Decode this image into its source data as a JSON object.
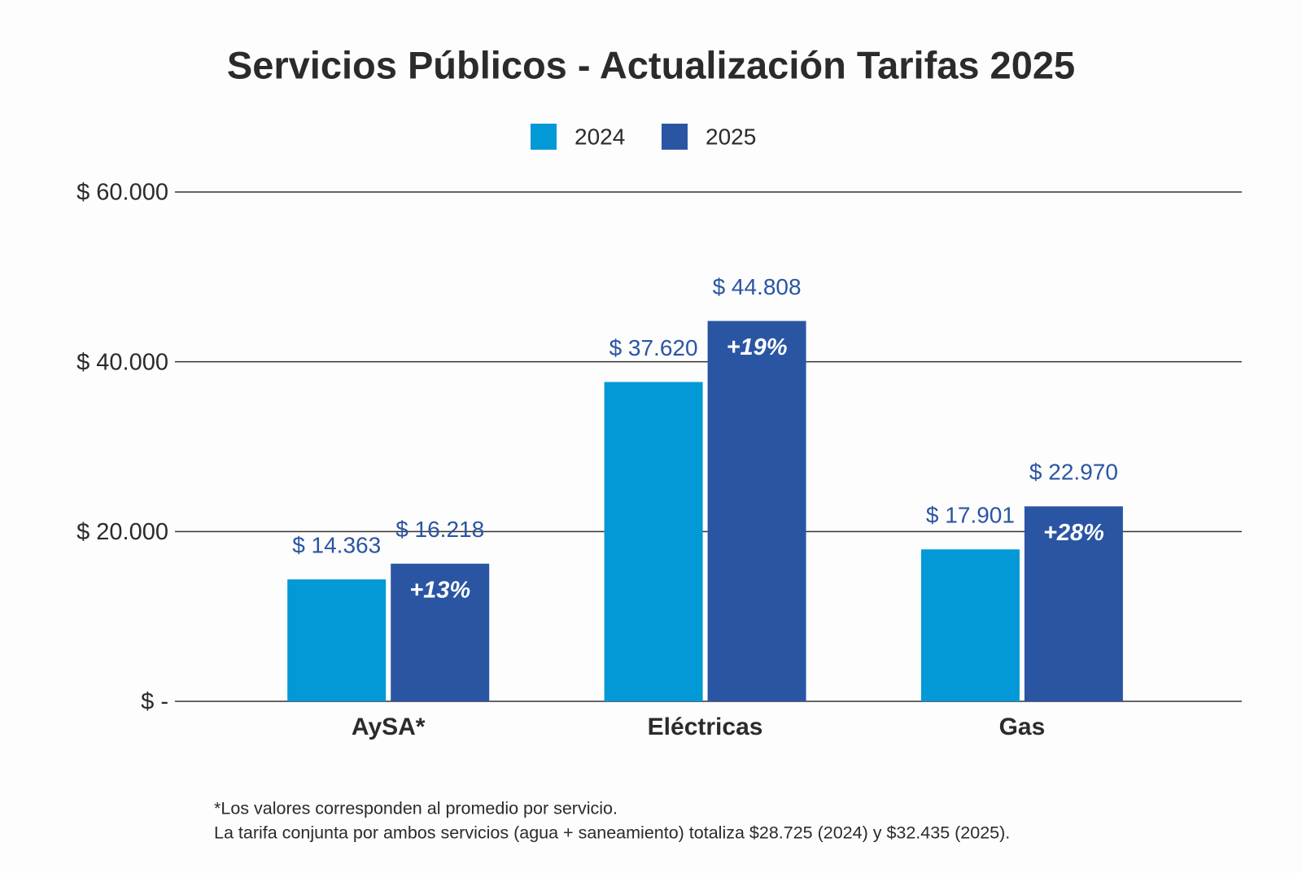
{
  "chart_data": {
    "type": "bar",
    "title": "Servicios Públicos - Actualización Tarifas 2025",
    "categories": [
      "AySA*",
      "Eléctricas",
      "Gas"
    ],
    "series": [
      {
        "name": "2024",
        "color": "#0399d6",
        "values": [
          14363,
          37620,
          17901
        ],
        "value_labels": [
          "$ 14.363",
          "$ 37.620",
          "$ 17.901"
        ]
      },
      {
        "name": "2025",
        "color": "#2a55a3",
        "values": [
          16218,
          44808,
          22970
        ],
        "value_labels": [
          "$ 16.218",
          "$ 44.808",
          "$ 22.970"
        ]
      }
    ],
    "annotations": [
      "+13%",
      "+19%",
      "+28%"
    ],
    "ylim": [
      0,
      60000
    ],
    "yticks": [
      {
        "value": 0,
        "label": "$ -"
      },
      {
        "value": 20000,
        "label": "$ 20.000"
      },
      {
        "value": 40000,
        "label": "$ 40.000"
      },
      {
        "value": 60000,
        "label": "$ 60.000"
      }
    ],
    "grid": true,
    "legend": "top",
    "notes": [
      "*Los valores corresponden al promedio por servicio.",
      "La tarifa conjunta por ambos servicios (agua + saneamiento) totaliza $28.725 (2024) y $32.435 (2025)."
    ]
  }
}
